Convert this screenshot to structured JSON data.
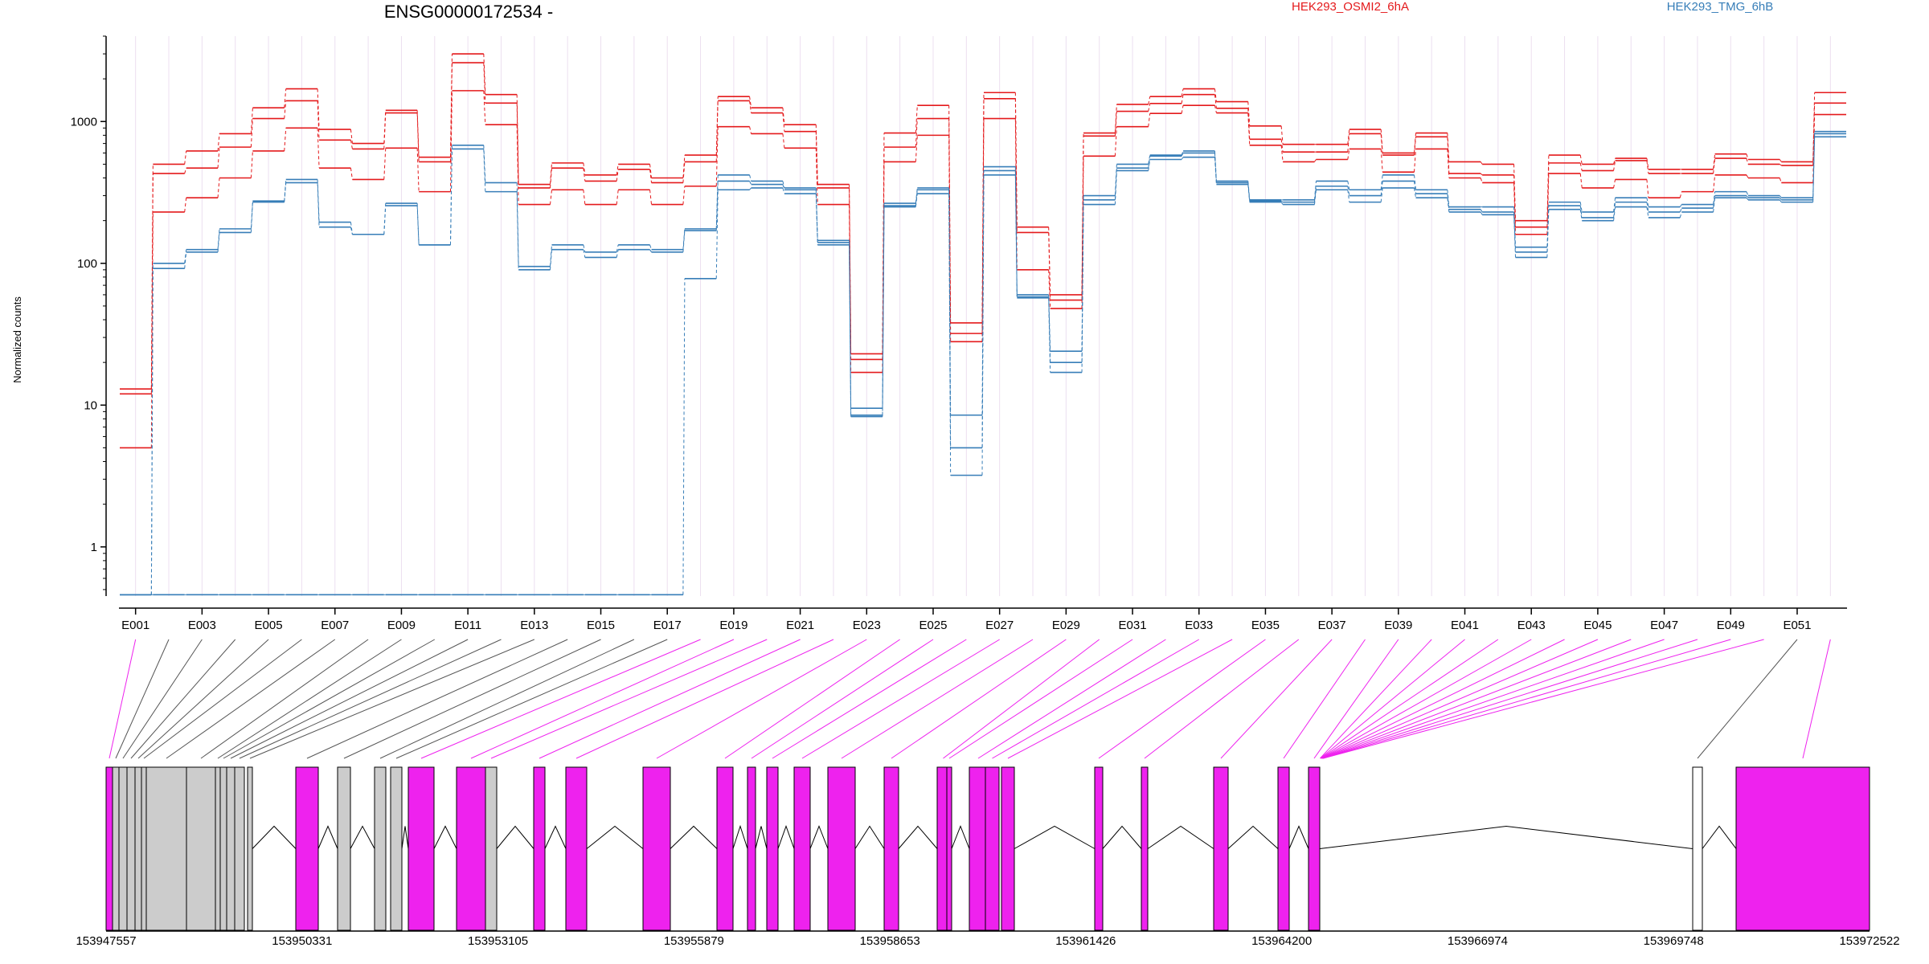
{
  "chart_data": {
    "type": "line",
    "title": "ENSG00000172534 -",
    "ylabel": "Normalized counts",
    "yscale": "log",
    "ylim": [
      0.45,
      4000
    ],
    "yticks": [
      1,
      10,
      100,
      1000
    ],
    "ytick_labels": [
      "1",
      "10",
      "100",
      "1000"
    ],
    "colors": {
      "HEK293_OSMI2_6hA": "#e41a1c",
      "HEK293_TMG_6hB": "#377eb8",
      "exon_highlight": "#ee22ee",
      "exon_plain": "#cccccc"
    },
    "legend": [
      "HEK293_OSMI2_6hA",
      "HEK293_TMG_6hB"
    ],
    "legend_placement": "top",
    "exons": [
      "E001",
      "E002",
      "E003",
      "E004",
      "E005",
      "E006",
      "E007",
      "E008",
      "E009",
      "E010",
      "E011",
      "E012",
      "E013",
      "E014",
      "E015",
      "E016",
      "E017",
      "E018",
      "E019",
      "E020",
      "E021",
      "E022",
      "E023",
      "E024",
      "E025",
      "E026",
      "E027",
      "E028",
      "E029",
      "E030",
      "E031",
      "E032",
      "E033",
      "E034",
      "E035",
      "E036",
      "E037",
      "E038",
      "E039",
      "E040",
      "E041",
      "E042",
      "E043",
      "E044",
      "E045",
      "E046",
      "E047",
      "E048",
      "E049",
      "E050",
      "E051",
      "E052"
    ],
    "xtick_labels": [
      "E001",
      "E003",
      "E005",
      "E007",
      "E009",
      "E011",
      "E013",
      "E015",
      "E017",
      "E019",
      "E021",
      "E023",
      "E025",
      "E027",
      "E029",
      "E031",
      "E033",
      "E035",
      "E037",
      "E039",
      "E041",
      "E043",
      "E045",
      "E047",
      "E049",
      "E051"
    ],
    "highlighted_exons": [
      "E001",
      "E018",
      "E019",
      "E020",
      "E021",
      "E022",
      "E023",
      "E024",
      "E025",
      "E026",
      "E027",
      "E028",
      "E029",
      "E030",
      "E031",
      "E032",
      "E033",
      "E034",
      "E035",
      "E036",
      "E037",
      "E038",
      "E039",
      "E040",
      "E041",
      "E042",
      "E043",
      "E044",
      "E045",
      "E046",
      "E047",
      "E048",
      "E049",
      "E050",
      "E052"
    ],
    "series": [
      {
        "name": "HEK293_OSMI2_6hA",
        "sample": 1,
        "values": [
          12,
          500,
          620,
          820,
          1250,
          1700,
          880,
          700,
          1200,
          560,
          3000,
          1550,
          360,
          510,
          420,
          500,
          400,
          580,
          1500,
          1250,
          950,
          360,
          23,
          830,
          1300,
          38,
          1600,
          180,
          60,
          830,
          1320,
          1500,
          1700,
          1380,
          930,
          690,
          690,
          880,
          600,
          830,
          520,
          500,
          200,
          580,
          500,
          550,
          460,
          460,
          590,
          540,
          520,
          1600
        ]
      },
      {
        "name": "HEK293_OSMI2_6hA",
        "sample": 2,
        "values": [
          13,
          430,
          470,
          660,
          1050,
          1400,
          740,
          640,
          1150,
          520,
          2600,
          1350,
          340,
          470,
          380,
          460,
          370,
          520,
          1400,
          1150,
          850,
          340,
          21,
          660,
          1050,
          32,
          1450,
          165,
          55,
          790,
          1180,
          1340,
          1550,
          1240,
          750,
          610,
          610,
          820,
          580,
          780,
          430,
          420,
          180,
          510,
          450,
          530,
          430,
          430,
          550,
          500,
          490,
          1350
        ]
      },
      {
        "name": "HEK293_OSMI2_6hA",
        "sample": 3,
        "values": [
          5,
          230,
          290,
          400,
          620,
          900,
          470,
          390,
          650,
          320,
          1650,
          950,
          260,
          330,
          260,
          330,
          260,
          350,
          920,
          820,
          650,
          260,
          17,
          520,
          800,
          28,
          1050,
          90,
          48,
          570,
          920,
          1140,
          1300,
          1150,
          680,
          520,
          540,
          640,
          440,
          640,
          400,
          370,
          160,
          430,
          340,
          390,
          290,
          320,
          420,
          400,
          370,
          1120
        ]
      },
      {
        "name": "HEK293_TMG_6hB",
        "sample": 1,
        "values": [
          0.46,
          100,
          125,
          175,
          275,
          390,
          195,
          160,
          265,
          135,
          680,
          370,
          95,
          135,
          120,
          135,
          125,
          175,
          420,
          380,
          340,
          145,
          9.5,
          265,
          340,
          8.5,
          480,
          60,
          24,
          300,
          500,
          580,
          620,
          380,
          280,
          280,
          380,
          330,
          420,
          330,
          250,
          250,
          130,
          270,
          230,
          290,
          250,
          260,
          320,
          300,
          290,
          850
        ]
      },
      {
        "name": "HEK293_TMG_6hB",
        "sample": 2,
        "values": [
          0.46,
          92,
          120,
          165,
          270,
          370,
          180,
          160,
          255,
          135,
          640,
          320,
          90,
          125,
          110,
          125,
          120,
          170,
          380,
          360,
          330,
          140,
          8.5,
          255,
          330,
          5,
          450,
          58,
          20,
          280,
          470,
          570,
          600,
          370,
          275,
          270,
          350,
          300,
          380,
          310,
          240,
          230,
          120,
          255,
          210,
          270,
          230,
          245,
          300,
          290,
          280,
          820
        ]
      },
      {
        "name": "HEK293_TMG_6hB",
        "sample": 3,
        "values": [
          0.46,
          0.46,
          0.46,
          0.46,
          0.46,
          0.46,
          0.46,
          0.46,
          0.46,
          0.46,
          0.46,
          0.46,
          0.46,
          0.46,
          0.46,
          0.46,
          0.46,
          78,
          330,
          340,
          310,
          135,
          8.3,
          250,
          310,
          3.2,
          420,
          57,
          17,
          260,
          450,
          540,
          560,
          360,
          270,
          260,
          330,
          270,
          340,
          290,
          230,
          220,
          110,
          240,
          200,
          250,
          210,
          230,
          290,
          280,
          270,
          780
        ]
      }
    ],
    "genomic_tick_labels": [
      "153947557",
      "153950331",
      "153953105",
      "153955879",
      "153958653",
      "153961426",
      "153964200",
      "153966974",
      "153969748",
      "153972522"
    ]
  }
}
